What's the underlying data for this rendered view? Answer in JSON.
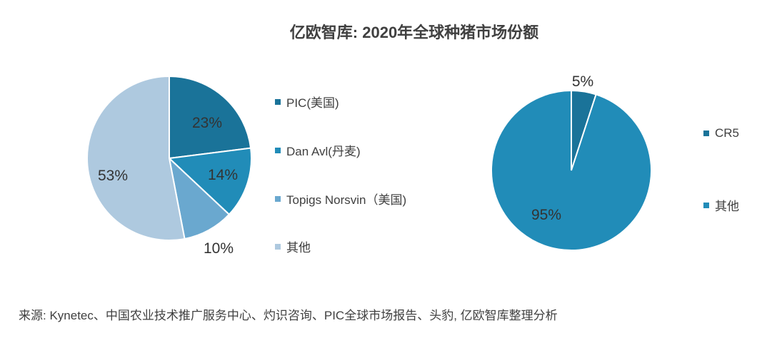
{
  "title": "亿欧智库: 2020年全球种猪市场份额",
  "colors": {
    "dark": "#1a7399",
    "mid": "#218cb8",
    "light": "#6aa8cf",
    "lightest": "#aec9df"
  },
  "chart_data": [
    {
      "type": "pie",
      "categories": [
        "PIC(美国)",
        "Dan Avl(丹麦)",
        "Topigs Norsvin（美国)",
        "其他"
      ],
      "values": [
        23,
        14,
        10,
        53
      ],
      "data_labels": [
        "23%",
        "14%",
        "10%",
        "53%"
      ],
      "legend_position": "right"
    },
    {
      "type": "pie",
      "categories": [
        "CR5",
        "其他"
      ],
      "values": [
        5,
        95
      ],
      "data_labels": [
        "5%",
        "95%"
      ],
      "legend_position": "right"
    }
  ],
  "source": "来源: Kynetec、中国农业技术推广服务中心、灼识咨询、PIC全球市场报告、头豹, 亿欧智库整理分析"
}
